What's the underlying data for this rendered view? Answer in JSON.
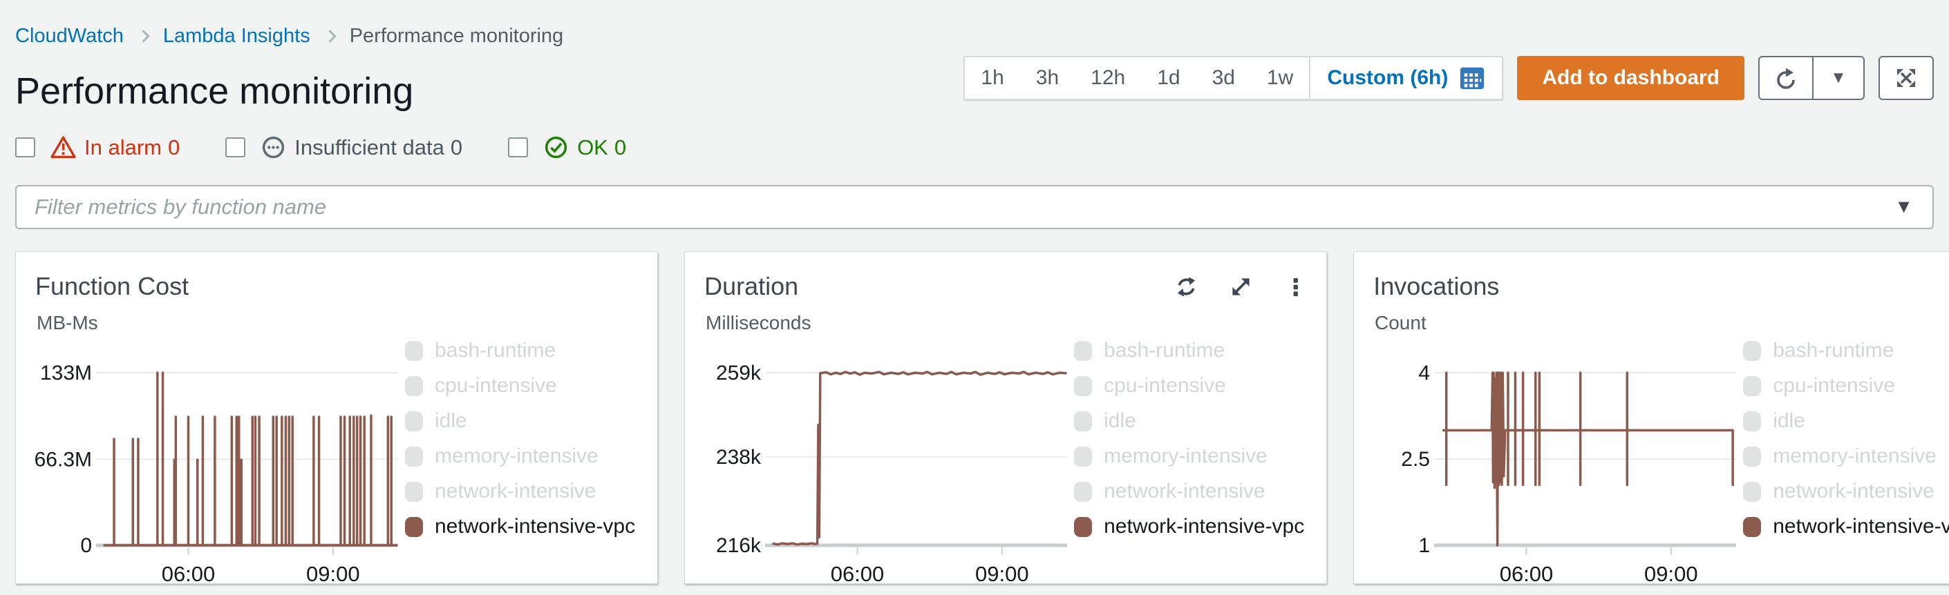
{
  "breadcrumb": {
    "items": [
      {
        "label": "CloudWatch",
        "link": true
      },
      {
        "label": "Lambda Insights",
        "link": true
      },
      {
        "label": "Performance monitoring",
        "link": false
      }
    ]
  },
  "header": {
    "title": "Performance monitoring"
  },
  "time_range": {
    "options": [
      "1h",
      "3h",
      "12h",
      "1d",
      "3d",
      "1w"
    ],
    "custom_label": "Custom (6h)"
  },
  "actions": {
    "add_to_dashboard": "Add to dashboard"
  },
  "alarm_filters": [
    {
      "label": "In alarm",
      "count": "0",
      "color": "#d13212",
      "icon": "alarm-triangle-icon"
    },
    {
      "label": "Insufficient data",
      "count": "0",
      "color": "#4d5760",
      "icon": "ellipsis-circle-icon"
    },
    {
      "label": "OK",
      "count": "0",
      "color": "#1d8102",
      "icon": "check-circle-icon"
    }
  ],
  "filter": {
    "placeholder": "Filter metrics by function name"
  },
  "glyphs": {
    "caret_down": "▼"
  },
  "colors": {
    "line": "#8c5a4d",
    "link_blue": "#0073bb",
    "orange_button": "#dd7524",
    "alarm_red": "#d13212",
    "ok_green": "#1d8102",
    "inactive_swatch": "#e1e3e3",
    "inactive_text": "#d2d6d6",
    "active_text": "#16191f",
    "gridline": "#e9ebeb",
    "axis": "#c9cdcd"
  },
  "legend": {
    "position": "right",
    "items": [
      {
        "label": "bash-runtime",
        "active": false
      },
      {
        "label": "cpu-intensive",
        "active": false
      },
      {
        "label": "idle",
        "active": false
      },
      {
        "label": "memory-intensive",
        "active": false
      },
      {
        "label": "network-intensive",
        "active": false
      },
      {
        "label": "network-intensive-vpc",
        "active": true
      }
    ]
  },
  "chart_data": [
    {
      "type": "line",
      "title": "Function Cost",
      "ylabel": "MB-Ms",
      "xlabel": "",
      "x_domain": [
        4.23,
        10.35
      ],
      "y_domain": [
        0,
        133
      ],
      "x_ticks": [
        {
          "v": 6,
          "label": "06:00"
        },
        {
          "v": 9,
          "label": "09:00"
        }
      ],
      "y_ticks": [
        {
          "v": 133,
          "label": "133M"
        },
        {
          "v": 66.3,
          "label": "66.3M"
        },
        {
          "v": 0,
          "label": "0"
        }
      ],
      "grid": true,
      "series": [
        {
          "name": "network-intensive-vpc",
          "mode": "spikes",
          "baseline": 0,
          "x_start": 4.26,
          "x_end": 10.32,
          "spikes": [
            [
              4.46,
              82
            ],
            [
              4.85,
              82
            ],
            [
              4.96,
              82
            ],
            [
              5.36,
              133
            ],
            [
              5.47,
              133
            ],
            [
              5.71,
              66
            ],
            [
              5.74,
              99
            ],
            [
              6.0,
              99
            ],
            [
              6.19,
              66
            ],
            [
              6.3,
              99
            ],
            [
              6.55,
              99
            ],
            [
              6.9,
              99
            ],
            [
              7.0,
              99
            ],
            [
              7.05,
              99
            ],
            [
              7.1,
              66
            ],
            [
              7.33,
              99
            ],
            [
              7.39,
              99
            ],
            [
              7.47,
              99
            ],
            [
              7.76,
              99
            ],
            [
              7.83,
              99
            ],
            [
              7.94,
              99
            ],
            [
              8.02,
              99
            ],
            [
              8.09,
              99
            ],
            [
              8.16,
              99
            ],
            [
              8.6,
              99
            ],
            [
              8.71,
              99
            ],
            [
              9.16,
              99
            ],
            [
              9.24,
              99
            ],
            [
              9.35,
              99
            ],
            [
              9.43,
              99
            ],
            [
              9.5,
              99
            ],
            [
              9.57,
              99
            ],
            [
              9.65,
              99
            ],
            [
              9.79,
              100
            ],
            [
              10.14,
              99
            ],
            [
              10.21,
              99
            ]
          ]
        }
      ]
    },
    {
      "type": "line",
      "title": "Duration",
      "ylabel": "Milliseconds",
      "xlabel": "",
      "x_domain": [
        4.23,
        10.35
      ],
      "y_domain": [
        216,
        259
      ],
      "x_ticks": [
        {
          "v": 6,
          "label": "06:00"
        },
        {
          "v": 9,
          "label": "09:00"
        }
      ],
      "y_ticks": [
        {
          "v": 259,
          "label": "259k"
        },
        {
          "v": 238,
          "label": "238k"
        },
        {
          "v": 216,
          "label": "216k"
        }
      ],
      "grid": true,
      "header_icons": [
        "refresh-widget-icon",
        "expand-widget-icon",
        "widget-menu-icon"
      ],
      "series": [
        {
          "name": "network-intensive-vpc",
          "mode": "line",
          "points": [
            [
              4.26,
              216.4
            ],
            [
              4.35,
              216.2
            ],
            [
              4.45,
              216.5
            ],
            [
              4.55,
              216.3
            ],
            [
              4.65,
              216.5
            ],
            [
              4.75,
              216.2
            ],
            [
              4.85,
              216.4
            ],
            [
              4.95,
              216.3
            ],
            [
              5.05,
              216.5
            ],
            [
              5.12,
              216.3
            ],
            [
              5.17,
              216.4
            ],
            [
              5.19,
              246
            ],
            [
              5.21,
              218
            ],
            [
              5.23,
              258.9
            ],
            [
              5.35,
              259.1
            ],
            [
              5.45,
              258.6
            ],
            [
              5.55,
              259.0
            ],
            [
              5.65,
              258.7
            ],
            [
              5.75,
              259.2
            ],
            [
              5.85,
              258.8
            ],
            [
              5.95,
              259.1
            ],
            [
              6.05,
              258.5
            ],
            [
              6.15,
              259.0
            ],
            [
              6.3,
              258.8
            ],
            [
              6.45,
              259.2
            ],
            [
              6.55,
              258.6
            ],
            [
              6.7,
              259.0
            ],
            [
              6.85,
              258.7
            ],
            [
              6.95,
              259.1
            ],
            [
              7.05,
              258.6
            ],
            [
              7.2,
              259.0
            ],
            [
              7.35,
              258.8
            ],
            [
              7.45,
              259.2
            ],
            [
              7.55,
              258.6
            ],
            [
              7.7,
              259.0
            ],
            [
              7.85,
              258.7
            ],
            [
              7.95,
              259.2
            ],
            [
              8.05,
              258.6
            ],
            [
              8.2,
              259.0
            ],
            [
              8.35,
              258.8
            ],
            [
              8.45,
              259.2
            ],
            [
              8.55,
              258.5
            ],
            [
              8.7,
              259.0
            ],
            [
              8.85,
              258.7
            ],
            [
              8.95,
              259.1
            ],
            [
              9.05,
              258.6
            ],
            [
              9.2,
              259.0
            ],
            [
              9.35,
              258.8
            ],
            [
              9.45,
              259.2
            ],
            [
              9.55,
              258.6
            ],
            [
              9.7,
              259.0
            ],
            [
              9.85,
              258.7
            ],
            [
              9.95,
              259.1
            ],
            [
              10.05,
              258.6
            ],
            [
              10.2,
              259.0
            ],
            [
              10.32,
              258.9
            ]
          ]
        }
      ]
    },
    {
      "type": "line",
      "title": "Invocations",
      "ylabel": "Count",
      "xlabel": "",
      "x_domain": [
        4.23,
        10.35
      ],
      "y_domain": [
        1,
        4
      ],
      "x_ticks": [
        {
          "v": 6,
          "label": "06:00"
        },
        {
          "v": 9,
          "label": "09:00"
        }
      ],
      "y_ticks": [
        {
          "v": 4,
          "label": "4"
        },
        {
          "v": 2.5,
          "label": "2.5"
        },
        {
          "v": 1,
          "label": "1"
        }
      ],
      "grid": true,
      "series": [
        {
          "name": "network-intensive-vpc",
          "mode": "line",
          "points": [
            [
              4.28,
              3
            ],
            [
              4.34,
              3
            ],
            [
              4.34,
              4
            ],
            [
              4.34,
              2.05
            ],
            [
              4.34,
              3
            ],
            [
              5.28,
              3
            ],
            [
              5.3,
              4
            ],
            [
              5.31,
              2.1
            ],
            [
              5.32,
              4
            ],
            [
              5.34,
              2.0
            ],
            [
              5.35,
              3.9
            ],
            [
              5.37,
              2.1
            ],
            [
              5.38,
              4
            ],
            [
              5.4,
              1.0
            ],
            [
              5.41,
              4
            ],
            [
              5.43,
              2.05
            ],
            [
              5.44,
              4
            ],
            [
              5.46,
              2.1
            ],
            [
              5.48,
              4
            ],
            [
              5.49,
              2.05
            ],
            [
              5.51,
              4
            ],
            [
              5.53,
              2.2
            ],
            [
              5.56,
              3
            ],
            [
              5.62,
              3
            ],
            [
              5.62,
              4
            ],
            [
              5.62,
              2.05
            ],
            [
              5.62,
              3
            ],
            [
              5.77,
              3
            ],
            [
              5.77,
              4
            ],
            [
              5.77,
              2.05
            ],
            [
              5.77,
              3
            ],
            [
              5.93,
              3
            ],
            [
              5.93,
              4
            ],
            [
              5.93,
              2.05
            ],
            [
              5.93,
              3
            ],
            [
              6.19,
              3
            ],
            [
              6.19,
              4
            ],
            [
              6.19,
              2.05
            ],
            [
              6.19,
              3
            ],
            [
              6.27,
              3
            ],
            [
              6.27,
              4
            ],
            [
              6.27,
              2.05
            ],
            [
              6.27,
              3
            ],
            [
              7.12,
              3
            ],
            [
              7.12,
              4
            ],
            [
              7.12,
              2.05
            ],
            [
              7.12,
              3
            ],
            [
              8.09,
              3
            ],
            [
              8.09,
              4
            ],
            [
              8.09,
              2.05
            ],
            [
              8.09,
              3
            ],
            [
              10.28,
              3
            ],
            [
              10.28,
              2.05
            ]
          ]
        }
      ]
    }
  ]
}
